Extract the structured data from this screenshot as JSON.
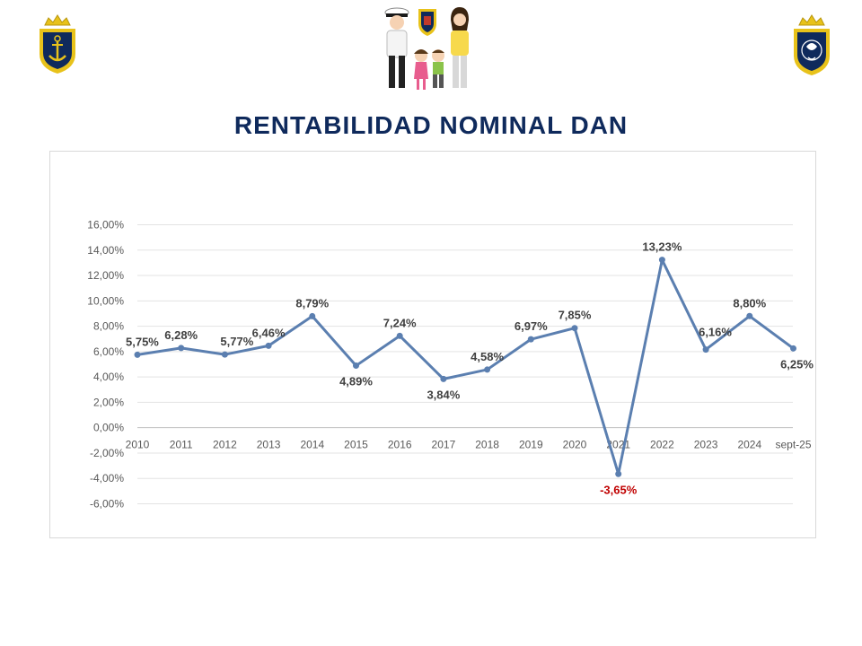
{
  "header": {
    "title": "RENTABILIDAD NOMINAL DAN"
  },
  "colors": {
    "title": "#0f2a5c",
    "line": "#5b7fb0",
    "negative_label": "#c00000",
    "navy": "#0f2a5c",
    "gold": "#e8c21a"
  },
  "icons": {
    "left": "navy-shield-anchor-icon",
    "center": "navy-family-icon",
    "right": "navy-crest-icon"
  },
  "chart_data": {
    "type": "line",
    "title": "RENTABILIDAD NOMINAL DAN",
    "xlabel": "",
    "ylabel": "",
    "ylim": [
      -6,
      16
    ],
    "yticks": [
      "16,00%",
      "14,00%",
      "12,00%",
      "10,00%",
      "8,00%",
      "6,00%",
      "4,00%",
      "2,00%",
      "0,00%",
      "-2,00%",
      "-4,00%",
      "-6,00%"
    ],
    "ytick_values": [
      16,
      14,
      12,
      10,
      8,
      6,
      4,
      2,
      0,
      -2,
      -4,
      -6
    ],
    "grid": true,
    "categories": [
      "2010",
      "2011",
      "2012",
      "2013",
      "2014",
      "2015",
      "2016",
      "2017",
      "2018",
      "2019",
      "2020",
      "2021",
      "2022",
      "2023",
      "2024",
      "sept-25"
    ],
    "series": [
      {
        "name": "Rentabilidad nominal",
        "values": [
          5.75,
          6.28,
          5.77,
          6.46,
          8.79,
          4.89,
          7.24,
          3.84,
          4.58,
          6.97,
          7.85,
          -3.65,
          13.23,
          6.16,
          8.8,
          6.25
        ],
        "labels": [
          "5,75%",
          "6,28%",
          "5,77%",
          "6,46%",
          "8,79%",
          "4,89%",
          "7,24%",
          "3,84%",
          "4,58%",
          "6,97%",
          "7,85%",
          "-3,65%",
          "13,23%",
          "6,16%",
          "8,80%",
          "6,25%"
        ],
        "label_placement": [
          "left",
          "above",
          "right",
          "above",
          "above",
          "below",
          "above",
          "below",
          "above",
          "above",
          "above",
          "below",
          "above",
          "right",
          "above",
          "below"
        ]
      }
    ]
  }
}
